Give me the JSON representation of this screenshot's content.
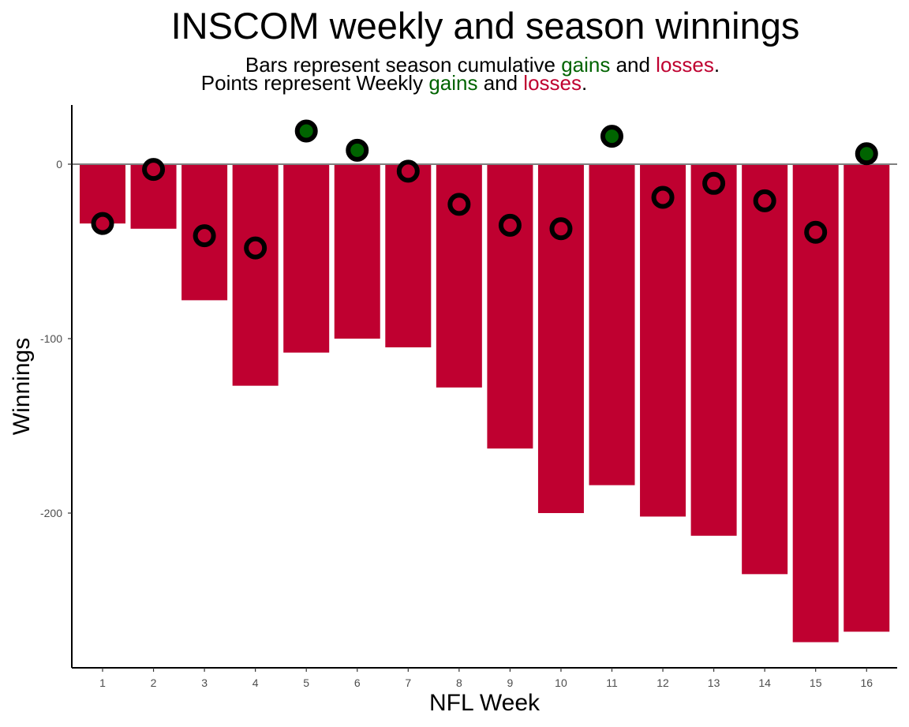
{
  "title": "INSCOM weekly and season winnings",
  "subtitle": {
    "line1_prefix": "Bars represent season cumulative ",
    "line2_prefix": "Points represent Weekly ",
    "gains": "gains",
    "and": " and ",
    "losses": "losses",
    "period": "."
  },
  "colors": {
    "gain": "#006400",
    "loss": "#BF0030",
    "point_outline": "#000000",
    "zero_line": "#808080"
  },
  "chart_data": {
    "type": "bar",
    "title": "INSCOM weekly and season winnings",
    "xlabel": "NFL Week",
    "ylabel": "Winnings",
    "categories": [
      "1",
      "2",
      "3",
      "4",
      "5",
      "6",
      "7",
      "8",
      "9",
      "10",
      "11",
      "12",
      "13",
      "14",
      "15",
      "16"
    ],
    "ylim": [
      -288,
      33
    ],
    "yticks": [
      0,
      -100,
      -200
    ],
    "ytick_labels": [
      "0",
      "-100",
      "-200"
    ],
    "grid": false,
    "legend": "none",
    "series": [
      {
        "kind": "bar",
        "values": [
          -34,
          -37,
          -78,
          -127,
          -108,
          -100,
          -105,
          -128,
          -163,
          -200,
          -184,
          -202,
          -213,
          -235,
          -274,
          -268
        ]
      },
      {
        "kind": "point",
        "values": [
          -34,
          -3,
          -41,
          -48,
          19,
          8,
          -4,
          -23,
          -35,
          -37,
          16,
          -19,
          -11,
          -21,
          -39,
          6
        ]
      }
    ]
  }
}
